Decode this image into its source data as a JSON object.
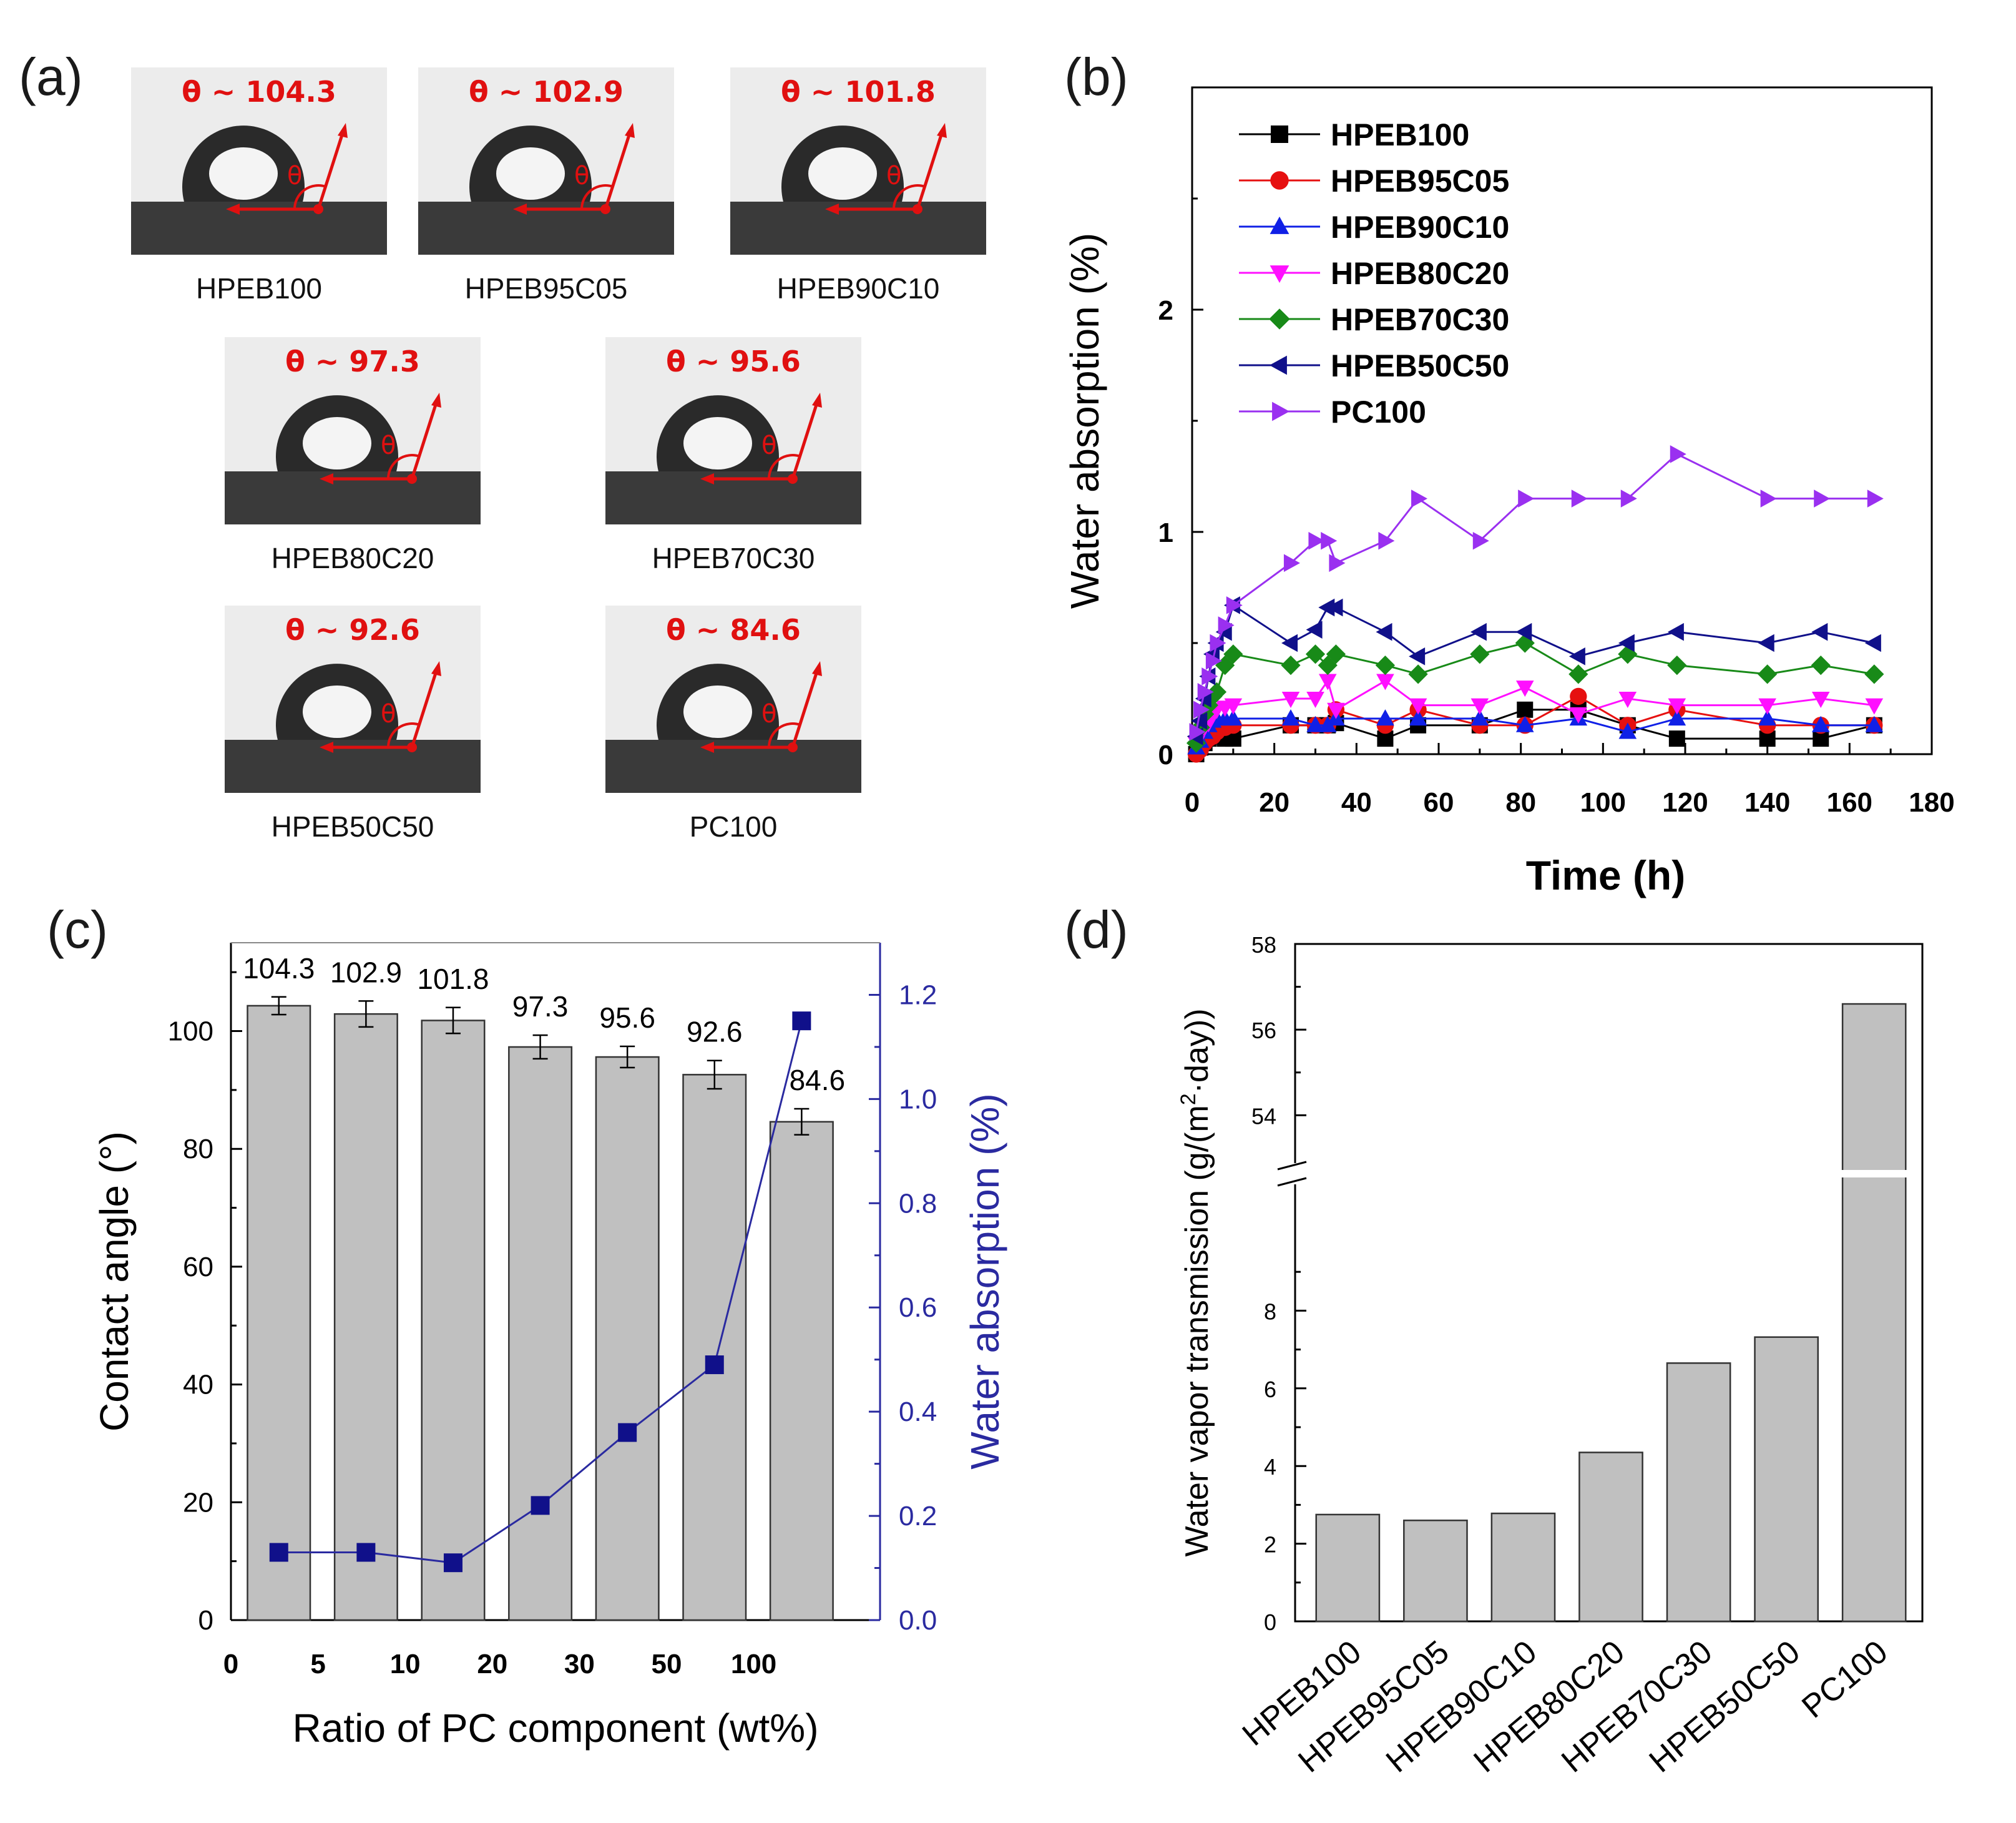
{
  "panel_labels": {
    "a": "(a)",
    "b": "(b)",
    "c": "(c)",
    "d": "(d)"
  },
  "panel_a": {
    "theta_symbol": "θ",
    "photos": [
      {
        "angle_label": "θ ~ 104.3",
        "sample": "HPEB100"
      },
      {
        "angle_label": "θ ~ 102.9",
        "sample": "HPEB95C05"
      },
      {
        "angle_label": "θ ~ 101.8",
        "sample": "HPEB90C10"
      },
      {
        "angle_label": "θ ~ 97.3",
        "sample": "HPEB80C20"
      },
      {
        "angle_label": "θ ~ 95.6",
        "sample": "HPEB70C30"
      },
      {
        "angle_label": "θ ~ 92.6",
        "sample": "HPEB50C50"
      },
      {
        "angle_label": "θ ~ 84.6",
        "sample": "PC100"
      }
    ]
  },
  "chart_data": [
    {
      "id": "b",
      "type": "line",
      "xlabel": "Time (h)",
      "ylabel": "Water absorption (%)",
      "xlim": [
        0,
        180
      ],
      "ylim": [
        0,
        3
      ],
      "xticks": [
        0,
        20,
        40,
        60,
        80,
        100,
        120,
        140,
        160,
        180
      ],
      "yticks": [
        0,
        1,
        2
      ],
      "legend_position": "top-left",
      "x": [
        1,
        2,
        3,
        4,
        5,
        6,
        8,
        10,
        24,
        30,
        33,
        35,
        47,
        55,
        70,
        81,
        94,
        106,
        118,
        140,
        153,
        166
      ],
      "series": [
        {
          "name": "HPEB100",
          "color": "#000000",
          "marker": "square",
          "values": [
            0,
            0.03,
            0.05,
            0.07,
            0.08,
            0.1,
            0.07,
            0.07,
            0.13,
            0.13,
            0.13,
            0.14,
            0.07,
            0.13,
            0.13,
            0.2,
            0.2,
            0.13,
            0.07,
            0.07,
            0.07,
            0.13
          ]
        },
        {
          "name": "HPEB95C05",
          "color": "#e61010",
          "marker": "circle",
          "values": [
            0,
            0.02,
            0.05,
            0.07,
            0.08,
            0.1,
            0.12,
            0.13,
            0.13,
            0.13,
            0.13,
            0.2,
            0.13,
            0.2,
            0.13,
            0.13,
            0.26,
            0.13,
            0.2,
            0.13,
            0.13,
            0.13
          ]
        },
        {
          "name": "HPEB90C10",
          "color": "#1020e6",
          "marker": "triangle-up",
          "values": [
            0.03,
            0.06,
            0.1,
            0.13,
            0.15,
            0.16,
            0.16,
            0.16,
            0.16,
            0.13,
            0.13,
            0.16,
            0.16,
            0.16,
            0.16,
            0.13,
            0.16,
            0.1,
            0.16,
            0.16,
            0.13,
            0.13
          ]
        },
        {
          "name": "HPEB80C20",
          "color": "#ff10ff",
          "marker": "triangle-down",
          "values": [
            0.05,
            0.1,
            0.12,
            0.14,
            0.18,
            0.2,
            0.21,
            0.22,
            0.25,
            0.25,
            0.33,
            0.2,
            0.33,
            0.22,
            0.22,
            0.3,
            0.18,
            0.25,
            0.22,
            0.22,
            0.25,
            0.22
          ]
        },
        {
          "name": "HPEB70C30",
          "color": "#188a18",
          "marker": "diamond",
          "values": [
            0.05,
            0.12,
            0.18,
            0.22,
            0.26,
            0.28,
            0.4,
            0.45,
            0.4,
            0.45,
            0.4,
            0.45,
            0.4,
            0.36,
            0.45,
            0.5,
            0.36,
            0.45,
            0.4,
            0.36,
            0.4,
            0.36
          ]
        },
        {
          "name": "HPEB50C50",
          "color": "#10108a",
          "marker": "triangle-left",
          "values": [
            0.08,
            0.15,
            0.25,
            0.35,
            0.45,
            0.5,
            0.55,
            0.67,
            0.5,
            0.56,
            0.66,
            0.66,
            0.55,
            0.44,
            0.55,
            0.55,
            0.44,
            0.5,
            0.55,
            0.5,
            0.55,
            0.5
          ]
        },
        {
          "name": "PC100",
          "color": "#9a30f0",
          "marker": "triangle-right",
          "values": [
            0.1,
            0.2,
            0.28,
            0.35,
            0.42,
            0.5,
            0.58,
            0.67,
            0.86,
            0.96,
            0.96,
            0.86,
            0.96,
            1.15,
            0.96,
            1.15,
            1.15,
            1.15,
            1.35,
            1.15,
            1.15,
            1.15
          ]
        }
      ]
    },
    {
      "id": "c",
      "type": "bar",
      "xlabel": "Ratio of PC component (wt%)",
      "ylabel": "Contact angle (°)",
      "y2label": "Water absorption (%)",
      "xtick_labels": [
        "0",
        "5",
        "10",
        "20",
        "30",
        "50",
        "100"
      ],
      "ylim": [
        0,
        115
      ],
      "yticks": [
        0,
        20,
        40,
        60,
        80,
        100
      ],
      "y2lim": [
        0,
        1.3
      ],
      "y2ticks": [
        "0.0",
        "0.2",
        "0.4",
        "0.6",
        "0.8",
        "1.0",
        "1.2"
      ],
      "bar_values": [
        104.3,
        102.9,
        101.8,
        97.3,
        95.6,
        92.6,
        84.6
      ],
      "bar_labels": [
        "104.3",
        "102.9",
        "101.8",
        "97.3",
        "95.6",
        "92.6",
        "84.6"
      ],
      "bar_errors": [
        1.5,
        2.2,
        2.2,
        2.0,
        1.8,
        2.4,
        2.2
      ],
      "line_values": [
        0.13,
        0.13,
        0.11,
        0.22,
        0.36,
        0.49,
        1.15
      ],
      "line_color": "#10108a"
    },
    {
      "id": "d",
      "type": "bar",
      "xlabel": "",
      "ylabel": "Water vapor transmission (g/(m2·day))",
      "ylabel_parts": {
        "pre": "Water vapor transmission (g/(m",
        "sup": "2",
        "post": "·day))"
      },
      "categories": [
        "HPEB100",
        "HPEB95C05",
        "HPEB90C10",
        "HPEB80C20",
        "HPEB70C30",
        "HPEB50C50",
        "PC100"
      ],
      "values": [
        2.75,
        2.6,
        2.78,
        4.35,
        6.65,
        7.32,
        56.6
      ],
      "y_break": {
        "lower_range": [
          0,
          10
        ],
        "upper_range": [
          53,
          58
        ]
      },
      "yticks_lower": [
        0,
        2,
        4,
        6,
        8
      ],
      "yticks_upper": [
        54,
        56,
        58
      ]
    }
  ]
}
